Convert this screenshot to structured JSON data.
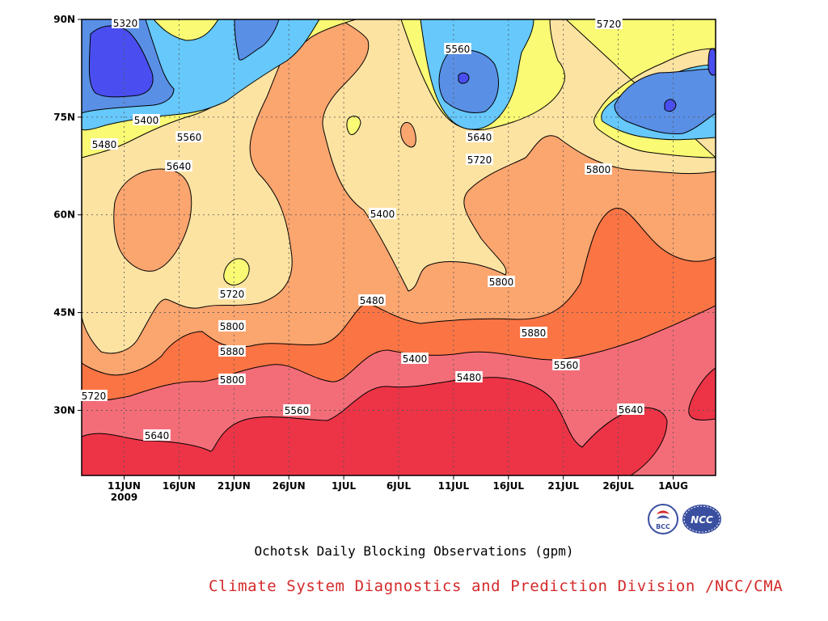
{
  "chart_data": {
    "type": "heatmap",
    "title": "Ochotsk Daily Blocking Observations (gpm)",
    "credit": "Climate System Diagnostics and Prediction Division /NCC/CMA",
    "x_ticks": [
      "11JUN",
      "16JUN",
      "21JUN",
      "26JUN",
      "1JUL",
      "6JUL",
      "11JUL",
      "16JUL",
      "21JUL",
      "26JUL",
      "1AUG"
    ],
    "x_year_label": "2009",
    "y_ticks": [
      "30N",
      "45N",
      "60N",
      "75N",
      "90N"
    ],
    "ylim": [
      20,
      90
    ],
    "contour_levels": [
      5320,
      5400,
      5480,
      5560,
      5640,
      5720,
      5800,
      5880
    ],
    "contour_labels": [
      "5320",
      "5400",
      "5480",
      "5560",
      "5640",
      "5720",
      "5800",
      "5880",
      "5800",
      "5720",
      "5640",
      "5560",
      "5480",
      "5400",
      "5560",
      "5640",
      "5720",
      "5800",
      "5880",
      "5400",
      "5480",
      "5560",
      "5640",
      "5720",
      "5800",
      "5880",
      "5560",
      "5640"
    ],
    "colors": {
      "below_5320": "#4a4ef0",
      "5320_5400": "#5a8fe6",
      "5400_5480": "#66c8fb",
      "5480_5560": "#fafa74",
      "5560_5640": "#fde3a2",
      "5640_5720": "#fba56f",
      "5720_5800": "#fb7444",
      "5800_5880": "#f36d78",
      "above_5880": "#ec3446"
    }
  },
  "logos": {
    "bcc": "BCC",
    "ncc": "NCC"
  }
}
